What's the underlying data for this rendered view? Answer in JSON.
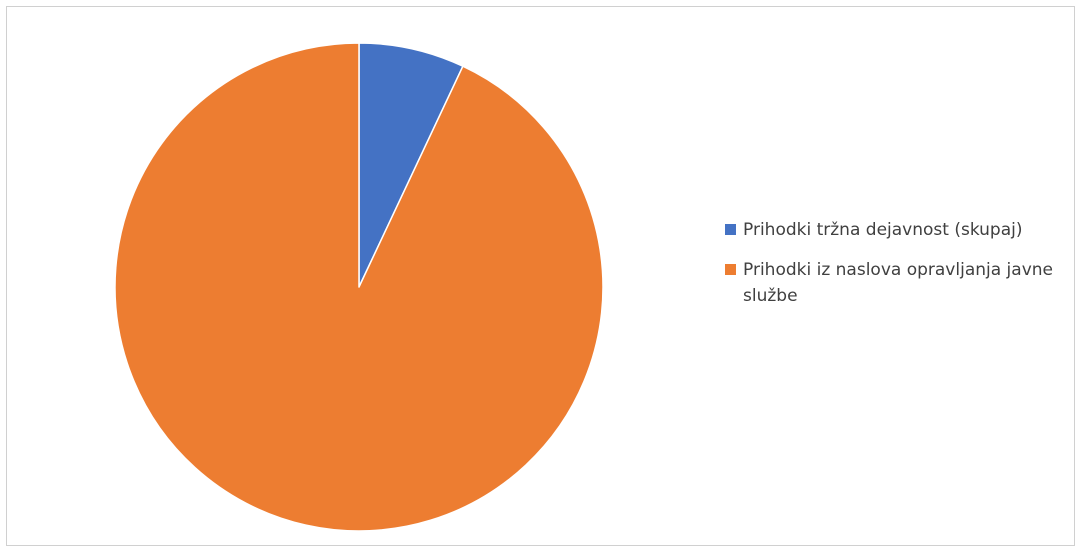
{
  "chart_data": {
    "type": "pie",
    "title": "",
    "categories": [
      "Prihodki tržna dejavnost (skupaj)",
      "Prihodki iz naslova opravljanja javne službe"
    ],
    "values": [
      7,
      93
    ],
    "colors": [
      "#4472C4",
      "#ED7D31"
    ],
    "legend_position": "right",
    "start_angle_degrees": 0,
    "direction": "clockwise"
  },
  "legend": {
    "items": [
      {
        "label": "Prihodki tržna dejavnost (skupaj)",
        "color": "#4472C4"
      },
      {
        "label": "Prihodki iz naslova opravljanja javne službe",
        "color": "#ED7D31"
      }
    ]
  }
}
